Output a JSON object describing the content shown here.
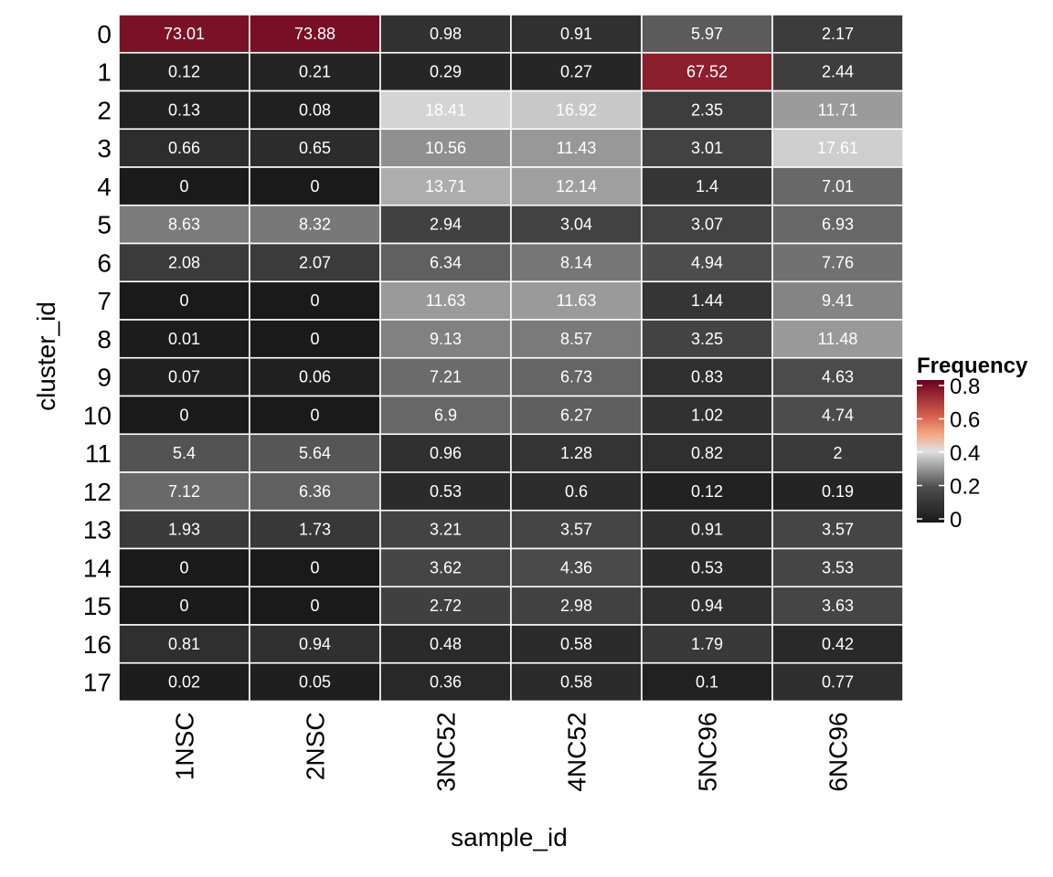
{
  "chart_data": {
    "type": "heatmap",
    "xlabel": "sample_id",
    "ylabel": "cluster_id",
    "x_categories": [
      "1NSC",
      "2NSC",
      "3NC52",
      "4NC52",
      "5NC96",
      "6NC96"
    ],
    "y_categories": [
      "0",
      "1",
      "2",
      "3",
      "4",
      "5",
      "6",
      "7",
      "8",
      "9",
      "10",
      "11",
      "12",
      "13",
      "14",
      "15",
      "16",
      "17"
    ],
    "values": [
      [
        73.01,
        73.88,
        0.98,
        0.91,
        5.97,
        2.17
      ],
      [
        0.12,
        0.21,
        0.29,
        0.27,
        67.52,
        2.44
      ],
      [
        0.13,
        0.08,
        18.41,
        16.92,
        2.35,
        11.71
      ],
      [
        0.66,
        0.65,
        10.56,
        11.43,
        3.01,
        17.61
      ],
      [
        0,
        0,
        13.71,
        12.14,
        1.4,
        7.01
      ],
      [
        8.63,
        8.32,
        2.94,
        3.04,
        3.07,
        6.93
      ],
      [
        2.08,
        2.07,
        6.34,
        8.14,
        4.94,
        7.76
      ],
      [
        0,
        0,
        11.63,
        11.63,
        1.44,
        9.41
      ],
      [
        0.01,
        0,
        9.13,
        8.57,
        3.25,
        11.48
      ],
      [
        0.07,
        0.06,
        7.21,
        6.73,
        0.83,
        4.63
      ],
      [
        0,
        0,
        6.9,
        6.27,
        1.02,
        4.74
      ],
      [
        5.4,
        5.64,
        0.96,
        1.28,
        0.82,
        2
      ],
      [
        7.12,
        6.36,
        0.53,
        0.6,
        0.12,
        0.19
      ],
      [
        1.93,
        1.73,
        3.21,
        3.57,
        0.91,
        3.57
      ],
      [
        0,
        0,
        3.62,
        4.36,
        0.53,
        3.53
      ],
      [
        0,
        0,
        2.72,
        2.98,
        0.94,
        3.63
      ],
      [
        0.81,
        0.94,
        0.48,
        0.58,
        1.79,
        0.42
      ],
      [
        0.02,
        0.05,
        0.36,
        0.58,
        0.1,
        0.77
      ]
    ],
    "legend": {
      "title": "Frequency",
      "ticks": [
        0,
        0.2,
        0.4,
        0.6,
        0.8
      ],
      "tick_labels": [
        "0",
        "0.2",
        "0.4",
        "0.6",
        "0.8"
      ],
      "range": [
        0,
        0.8
      ],
      "placement": "right"
    },
    "colors": {
      "low": "#1a1a1a",
      "mid_low": "#4d4d4d",
      "mid": "#e0e0e0",
      "mid_high": "#f4a582",
      "high": "#d6604d",
      "max": "#67001f",
      "cell_border": "#ffffff",
      "cell_text": "#ffffff"
    }
  }
}
